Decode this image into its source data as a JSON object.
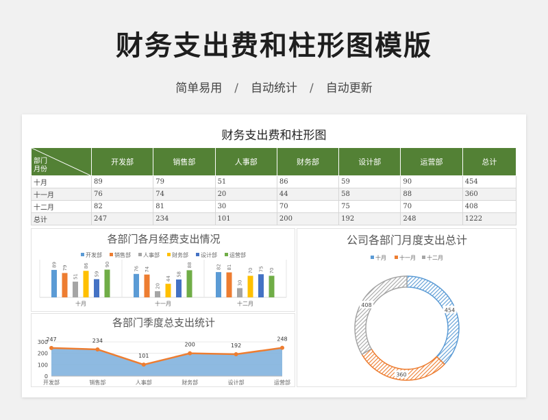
{
  "header": {
    "title": "财务支出费和柱形图模版",
    "subtitle": [
      "简单易用",
      "自动统计",
      "自动更新"
    ],
    "separator": "/"
  },
  "sheet": {
    "title": "财务支出费和柱形图",
    "corner_top": "部门",
    "corner_bottom": "月份",
    "columns": [
      "开发部",
      "销售部",
      "人事部",
      "财务部",
      "设计部",
      "运营部",
      "总计"
    ],
    "rows": [
      {
        "label": "十月",
        "values": [
          89,
          79,
          51,
          86,
          59,
          90,
          454
        ]
      },
      {
        "label": "十一月",
        "values": [
          76,
          74,
          20,
          44,
          58,
          88,
          360
        ]
      },
      {
        "label": "十二月",
        "values": [
          82,
          81,
          30,
          70,
          75,
          70,
          408
        ]
      },
      {
        "label": "总计",
        "values": [
          247,
          234,
          101,
          200,
          192,
          248,
          1222
        ]
      }
    ]
  },
  "chart_data": [
    {
      "type": "bar",
      "title": "各部门各月经费支出情况",
      "categories": [
        "十月",
        "十一月",
        "十二月"
      ],
      "series": [
        {
          "name": "开发部",
          "values": [
            89,
            76,
            82
          ],
          "color": "#5b9bd5"
        },
        {
          "name": "销售部",
          "values": [
            79,
            74,
            81
          ],
          "color": "#ed7d31"
        },
        {
          "name": "人事部",
          "values": [
            51,
            20,
            30
          ],
          "color": "#a5a5a5"
        },
        {
          "name": "财务部",
          "values": [
            86,
            44,
            70
          ],
          "color": "#ffc000"
        },
        {
          "name": "设计部",
          "values": [
            59,
            58,
            75
          ],
          "color": "#4472c4"
        },
        {
          "name": "运营部",
          "values": [
            90,
            88,
            70
          ],
          "color": "#70ad47"
        }
      ],
      "legend": "top",
      "data_labels": true,
      "ylim": [
        0,
        100
      ]
    },
    {
      "type": "area",
      "title": "各部门季度总支出统计",
      "categories": [
        "开发部",
        "销售部",
        "人事部",
        "财务部",
        "设计部",
        "运营部"
      ],
      "values": [
        247,
        234,
        101,
        200,
        192,
        248
      ],
      "ylim": [
        0,
        300
      ],
      "yticks": [
        0,
        100,
        200,
        300
      ],
      "area_color": "#7aaedc",
      "line_color": "#ed7d31",
      "data_labels": true
    },
    {
      "type": "pie",
      "donut": true,
      "title": "公司各部门月度支出总计",
      "categories": [
        "十月",
        "十一月",
        "十二月"
      ],
      "values": [
        454,
        360,
        408
      ],
      "colors": [
        "#5b9bd5",
        "#ed7d31",
        "#a5a5a5"
      ],
      "legend": "top",
      "data_labels": true
    }
  ]
}
